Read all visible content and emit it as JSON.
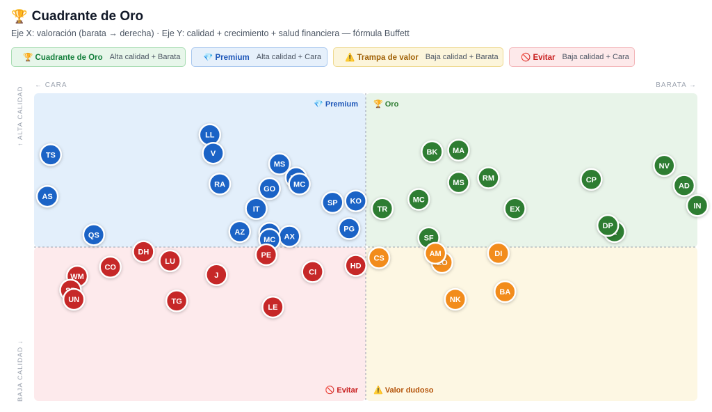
{
  "header": {
    "title_icon": "trophy-icon",
    "title": "Cuadrante de Oro",
    "subtitle": "Eje X: valoración (barata → derecha) · Eje Y: calidad + crecimiento + salud financiera — fórmula Buffett"
  },
  "legend": [
    {
      "name": "🏆 Cuadrante de Oro",
      "desc": "Alta calidad + Barata",
      "color": "#16a34a",
      "bg": "#e7f6ea",
      "border": "#a7dcb2",
      "text": "#15803d"
    },
    {
      "name": "💎 Premium",
      "desc": "Alta calidad + Cara",
      "color": "#1d6ad1",
      "bg": "#e6f0fb",
      "border": "#a8c7ee",
      "text": "#1d56b8"
    },
    {
      "name": "⚠️ Trampa de valor",
      "desc": "Baja calidad + Barata",
      "color": "#d39a17",
      "bg": "#fcf5db",
      "border": "#eed98f",
      "text": "#a16207"
    },
    {
      "name": "🚫 Evitar",
      "desc": "Baja calidad + Cara",
      "color": "#dc2626",
      "bg": "#fde9ea",
      "border": "#f3b5b8",
      "text": "#c81e1e"
    }
  ],
  "axes": {
    "left_top": "← CARA",
    "right_top": "BARATA →",
    "top_side": "↑ ALTA CALIDAD",
    "bottom_side": "BAJA CALIDAD ↓"
  },
  "quadrant_labels": {
    "premium": "💎 Premium",
    "oro": "🏆 Oro",
    "evitar": "🚫 Evitar",
    "dudoso": "⚠️ Valor dudoso"
  },
  "colors": {
    "blue": "#1b63c6",
    "green": "#2e7d32",
    "red": "#c62828",
    "orange": "#f28c1c",
    "premium_bg": "#e3effb",
    "oro_bg": "#e8f4e9",
    "evitar_bg": "#fdeaec",
    "dudoso_bg": "#fdf7e3"
  },
  "chart_data": {
    "type": "scatter",
    "x_range": [
      -1,
      1
    ],
    "y_range": [
      -1,
      1
    ],
    "points": [
      {
        "label": "TS",
        "x": -0.95,
        "y": 0.6,
        "group": "premium"
      },
      {
        "label": "AS",
        "x": -0.96,
        "y": 0.33,
        "group": "premium"
      },
      {
        "label": "QS",
        "x": -0.82,
        "y": 0.08,
        "group": "premium"
      },
      {
        "label": "LL",
        "x": -0.47,
        "y": 0.73,
        "group": "premium"
      },
      {
        "label": "V",
        "x": -0.46,
        "y": 0.61,
        "group": "premium"
      },
      {
        "label": "RA",
        "x": -0.44,
        "y": 0.41,
        "group": "premium"
      },
      {
        "label": "MS",
        "x": -0.26,
        "y": 0.54,
        "group": "premium"
      },
      {
        "label": "MC",
        "x": -0.21,
        "y": 0.45,
        "group": "premium"
      },
      {
        "label": "MC",
        "x": -0.2,
        "y": 0.41,
        "group": "premium"
      },
      {
        "label": "GO",
        "x": -0.29,
        "y": 0.38,
        "group": "premium"
      },
      {
        "label": "IT",
        "x": -0.33,
        "y": 0.25,
        "group": "premium"
      },
      {
        "label": "SP",
        "x": -0.1,
        "y": 0.29,
        "group": "premium"
      },
      {
        "label": "KO",
        "x": -0.03,
        "y": 0.3,
        "group": "premium"
      },
      {
        "label": "PG",
        "x": -0.05,
        "y": 0.12,
        "group": "premium"
      },
      {
        "label": "AZ",
        "x": -0.38,
        "y": 0.1,
        "group": "premium"
      },
      {
        "label": "MC",
        "x": -0.29,
        "y": 0.09,
        "group": "premium"
      },
      {
        "label": "AX",
        "x": -0.23,
        "y": 0.07,
        "group": "premium"
      },
      {
        "label": "MC",
        "x": -0.29,
        "y": 0.05,
        "group": "premium"
      },
      {
        "label": "BK",
        "x": 0.2,
        "y": 0.62,
        "group": "oro"
      },
      {
        "label": "MA",
        "x": 0.28,
        "y": 0.63,
        "group": "oro"
      },
      {
        "label": "MS",
        "x": 0.28,
        "y": 0.42,
        "group": "oro"
      },
      {
        "label": "RM",
        "x": 0.37,
        "y": 0.45,
        "group": "oro"
      },
      {
        "label": "MC",
        "x": 0.16,
        "y": 0.31,
        "group": "oro"
      },
      {
        "label": "TR",
        "x": 0.05,
        "y": 0.25,
        "group": "oro"
      },
      {
        "label": "EX",
        "x": 0.45,
        "y": 0.25,
        "group": "oro"
      },
      {
        "label": "CP",
        "x": 0.68,
        "y": 0.44,
        "group": "oro"
      },
      {
        "label": "NV",
        "x": 0.9,
        "y": 0.53,
        "group": "oro"
      },
      {
        "label": "AD",
        "x": 0.96,
        "y": 0.4,
        "group": "oro"
      },
      {
        "label": "IN",
        "x": 1.0,
        "y": 0.27,
        "group": "oro"
      },
      {
        "label": "E",
        "x": 0.75,
        "y": 0.1,
        "group": "oro"
      },
      {
        "label": "DP",
        "x": 0.73,
        "y": 0.14,
        "group": "oro"
      },
      {
        "label": "SF",
        "x": 0.19,
        "y": 0.06,
        "group": "oro"
      },
      {
        "label": "DH",
        "x": -0.67,
        "y": -0.03,
        "group": "evitar"
      },
      {
        "label": "LU",
        "x": -0.59,
        "y": -0.09,
        "group": "evitar"
      },
      {
        "label": "CO",
        "x": -0.77,
        "y": -0.13,
        "group": "evitar"
      },
      {
        "label": "WM",
        "x": -0.87,
        "y": -0.19,
        "group": "evitar"
      },
      {
        "label": "SP",
        "x": -0.89,
        "y": -0.28,
        "group": "evitar"
      },
      {
        "label": "UN",
        "x": -0.88,
        "y": -0.34,
        "group": "evitar"
      },
      {
        "label": "TG",
        "x": -0.57,
        "y": -0.35,
        "group": "evitar"
      },
      {
        "label": "J",
        "x": -0.45,
        "y": -0.18,
        "group": "evitar"
      },
      {
        "label": "PE",
        "x": -0.3,
        "y": -0.05,
        "group": "evitar"
      },
      {
        "label": "LE",
        "x": -0.28,
        "y": -0.39,
        "group": "evitar"
      },
      {
        "label": "CI",
        "x": -0.16,
        "y": -0.16,
        "group": "evitar"
      },
      {
        "label": "HD",
        "x": -0.03,
        "y": -0.12,
        "group": "evitar"
      },
      {
        "label": "CS",
        "x": 0.04,
        "y": -0.07,
        "group": "dudoso"
      },
      {
        "label": "EO",
        "x": 0.23,
        "y": -0.1,
        "group": "dudoso"
      },
      {
        "label": "AM",
        "x": 0.21,
        "y": -0.04,
        "group": "dudoso"
      },
      {
        "label": "DI",
        "x": 0.4,
        "y": -0.04,
        "group": "dudoso"
      },
      {
        "label": "BA",
        "x": 0.42,
        "y": -0.29,
        "group": "dudoso"
      },
      {
        "label": "NK",
        "x": 0.27,
        "y": -0.34,
        "group": "dudoso"
      }
    ]
  }
}
